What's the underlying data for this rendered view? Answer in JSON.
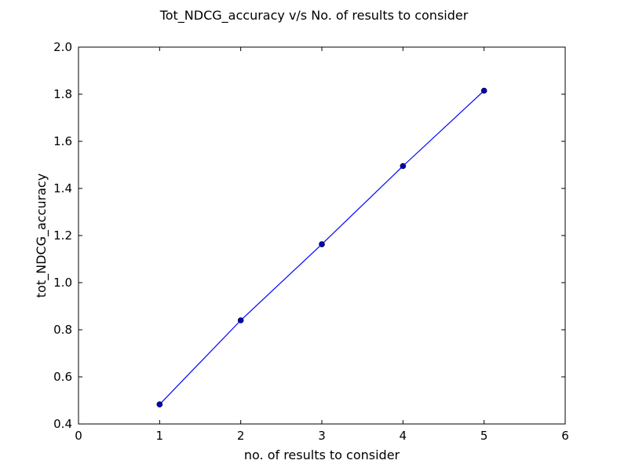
{
  "chart_data": {
    "type": "line",
    "title": "Tot_NDCG_accuracy v/s No. of results to consider",
    "xlabel": "no. of results to consider",
    "ylabel": "tot_NDCG_accuracy",
    "xlim": [
      0,
      6
    ],
    "ylim": [
      0.4,
      2.0
    ],
    "xticks": [
      0,
      1,
      2,
      3,
      4,
      5,
      6
    ],
    "yticks": [
      0.4,
      0.6,
      0.8,
      1.0,
      1.2,
      1.4,
      1.6,
      1.8,
      2.0
    ],
    "xtick_labels": [
      "0",
      "1",
      "2",
      "3",
      "4",
      "5",
      "6"
    ],
    "ytick_labels": [
      "0.4",
      "0.6",
      "0.8",
      "1.0",
      "1.2",
      "1.4",
      "1.6",
      "1.8",
      "2.0"
    ],
    "grid": false,
    "series": [
      {
        "x": [
          1,
          2,
          3,
          4,
          5
        ],
        "values": [
          0.483,
          0.84,
          1.163,
          1.495,
          1.815
        ],
        "color": "#0000ff",
        "marker": "circle",
        "marker_color": "#0000bf"
      }
    ]
  }
}
